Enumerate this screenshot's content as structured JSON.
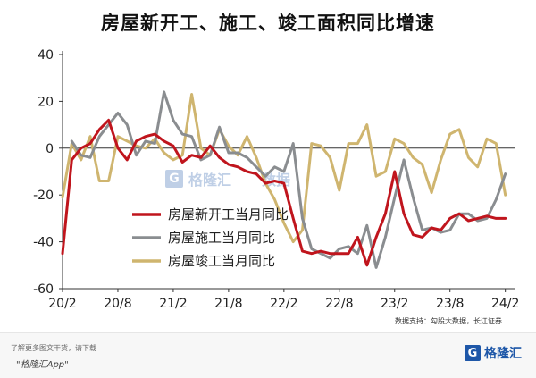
{
  "title": "房屋新开工、施工、竣工面积同比增速",
  "source": "数据支持：勾股大数据，长江证券",
  "footer": {
    "line1": "了解更多图文干货，请下载",
    "line2": "\"格隆汇App\"",
    "brand_text": "格隆汇"
  },
  "watermark": {
    "brand_text": "格隆汇",
    "sub_text": "格隆汇",
    "data_text": "数据"
  },
  "chart_data": {
    "type": "line",
    "title": "房屋新开工、施工、竣工面积同比增速",
    "xlabel": "",
    "ylabel": "",
    "ylim": [
      -60,
      40
    ],
    "yticks": [
      -60,
      -40,
      -20,
      0,
      20,
      40
    ],
    "xlim": [
      0,
      49
    ],
    "xticks": [
      {
        "label": "20/2",
        "x": 0
      },
      {
        "label": "20/8",
        "x": 6
      },
      {
        "label": "21/2",
        "x": 12
      },
      {
        "label": "21/8",
        "x": 18
      },
      {
        "label": "22/2",
        "x": 24
      },
      {
        "label": "22/8",
        "x": 30
      },
      {
        "label": "23/2",
        "x": 36
      },
      {
        "label": "23/8",
        "x": 42
      },
      {
        "label": "24/2",
        "x": 48
      }
    ],
    "legend_position": "center",
    "series": [
      {
        "name": "房屋新开工当月同比",
        "color": "#c0151d",
        "values": [
          -45,
          -5,
          0,
          2,
          8,
          12,
          0,
          -5,
          3,
          5,
          6,
          3,
          1,
          -6,
          -3,
          -4,
          1,
          -4,
          -7,
          -8,
          -10,
          -11,
          -15,
          -14,
          -15,
          -30,
          -44,
          -45,
          -44,
          -45,
          -45,
          -45,
          -38,
          -50,
          -38,
          -28,
          -10,
          -28,
          -37,
          -38,
          -34,
          -35,
          -30,
          -28,
          -31,
          -30,
          -29,
          -30,
          -30
        ],
        "x_start": 0
      },
      {
        "name": "房屋施工当月同比",
        "color": "#8a8d90",
        "values": [
          3,
          -3,
          -4,
          5,
          10,
          15,
          10,
          -3,
          3,
          2,
          24,
          12,
          6,
          5,
          -5,
          -3,
          9,
          -2,
          -2,
          -4,
          -8,
          -12,
          -8,
          -10,
          2,
          -30,
          -43,
          -45,
          -47,
          -43,
          -42,
          -45,
          -33,
          -51,
          -38,
          -21,
          -5,
          -21,
          -35,
          -34,
          -36,
          -35,
          -28,
          -28,
          -31,
          -30,
          -22,
          -11
        ],
        "x_start": 1
      },
      {
        "name": "房屋竣工当月同比",
        "color": "#cfb56f",
        "values": [
          -21,
          2,
          -5,
          5,
          -14,
          -14,
          5,
          3,
          1,
          0,
          4,
          -2,
          -5,
          -3,
          23,
          0,
          -3,
          8,
          1,
          -3,
          5,
          -4,
          -15,
          -22,
          -32,
          -40,
          -35,
          2,
          1,
          -4,
          -18,
          2,
          2,
          10,
          -12,
          -10,
          4,
          2,
          -4,
          -7,
          -19,
          -5,
          6,
          8,
          -4,
          -8,
          4,
          2,
          -20
        ],
        "x_start": 0
      }
    ]
  }
}
